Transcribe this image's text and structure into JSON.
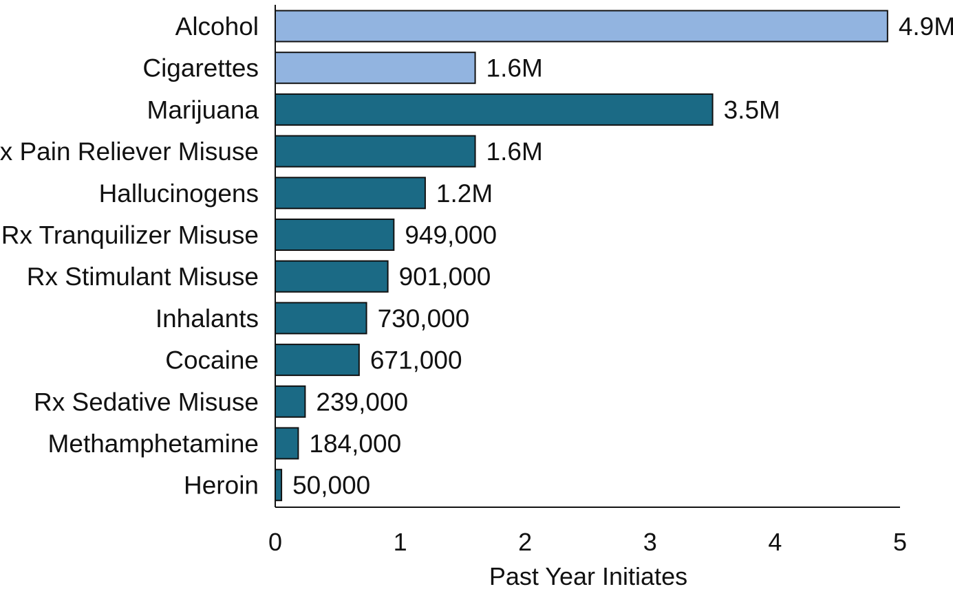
{
  "chart_data": {
    "type": "bar",
    "orientation": "horizontal",
    "title": "",
    "xlabel": "Past Year Initiates",
    "ylabel": "",
    "xlim": [
      0,
      5
    ],
    "x_ticks": [
      "0",
      "1",
      "2",
      "3",
      "4",
      "5"
    ],
    "grid": false,
    "legend": "none",
    "categories": [
      "Alcohol",
      "Cigarettes",
      "Marijuana",
      "Rx Pain Reliever Misuse",
      "Hallucinogens",
      "Rx Tranquilizer Misuse",
      "Rx Stimulant Misuse",
      "Inhalants",
      "Cocaine",
      "Rx Sedative Misuse",
      "Methamphetamine",
      "Heroin"
    ],
    "values": [
      4.9,
      1.6,
      3.5,
      1.6,
      1.2,
      0.949,
      0.901,
      0.73,
      0.671,
      0.239,
      0.184,
      0.05
    ],
    "value_labels": [
      "4.9M",
      "1.6M",
      "3.5M",
      "1.6M",
      "1.2M",
      "949,000",
      "901,000",
      "730,000",
      "671,000",
      "239,000",
      "184,000",
      "50,000"
    ],
    "colors": [
      "#92b4e0",
      "#92b4e0",
      "#1b6a85",
      "#1b6a85",
      "#1b6a85",
      "#1b6a85",
      "#1b6a85",
      "#1b6a85",
      "#1b6a85",
      "#1b6a85",
      "#1b6a85",
      "#1b6a85"
    ],
    "bar_outline_color": "#111111",
    "axis_color": "#111111"
  }
}
